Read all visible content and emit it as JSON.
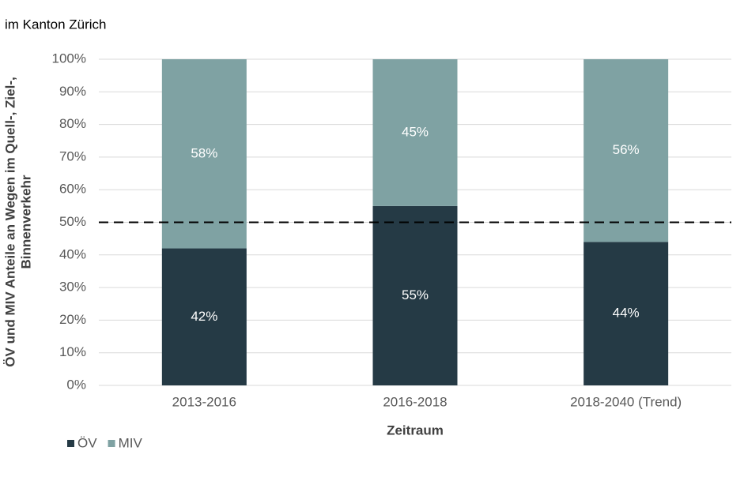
{
  "chart_data": {
    "type": "stacked_bar",
    "subtitle": "im Kanton Zürich",
    "ylabel": [
      "ÖV und MIV Anteile an Wegen im Quell-, Ziel-,",
      "Binnenverkehr"
    ],
    "xlabel": "Zeitraum",
    "categories": [
      "2013-2016",
      "2016-2018",
      "2018-2040 (Trend)"
    ],
    "series": [
      {
        "name": "ÖV",
        "color": "#253a45",
        "values": [
          42,
          55,
          44
        ],
        "value_labels": [
          "42%",
          "55%",
          "44%"
        ]
      },
      {
        "name": "MIV",
        "color": "#7fa2a3",
        "values": [
          58,
          45,
          56
        ],
        "value_labels": [
          "58%",
          "45%",
          "56%"
        ]
      }
    ],
    "ylim": [
      0,
      100
    ],
    "yticks": [
      {
        "value": 0,
        "label": "0%"
      },
      {
        "value": 10,
        "label": "10%"
      },
      {
        "value": 20,
        "label": "20%"
      },
      {
        "value": 30,
        "label": "30%"
      },
      {
        "value": 40,
        "label": "40%"
      },
      {
        "value": 50,
        "label": "50%"
      },
      {
        "value": 60,
        "label": "60%"
      },
      {
        "value": 70,
        "label": "70%"
      },
      {
        "value": 80,
        "label": "80%"
      },
      {
        "value": 90,
        "label": "90%"
      },
      {
        "value": 100,
        "label": "100%"
      }
    ],
    "reference_line": 50,
    "grid": true,
    "legend": "bottom-left"
  }
}
